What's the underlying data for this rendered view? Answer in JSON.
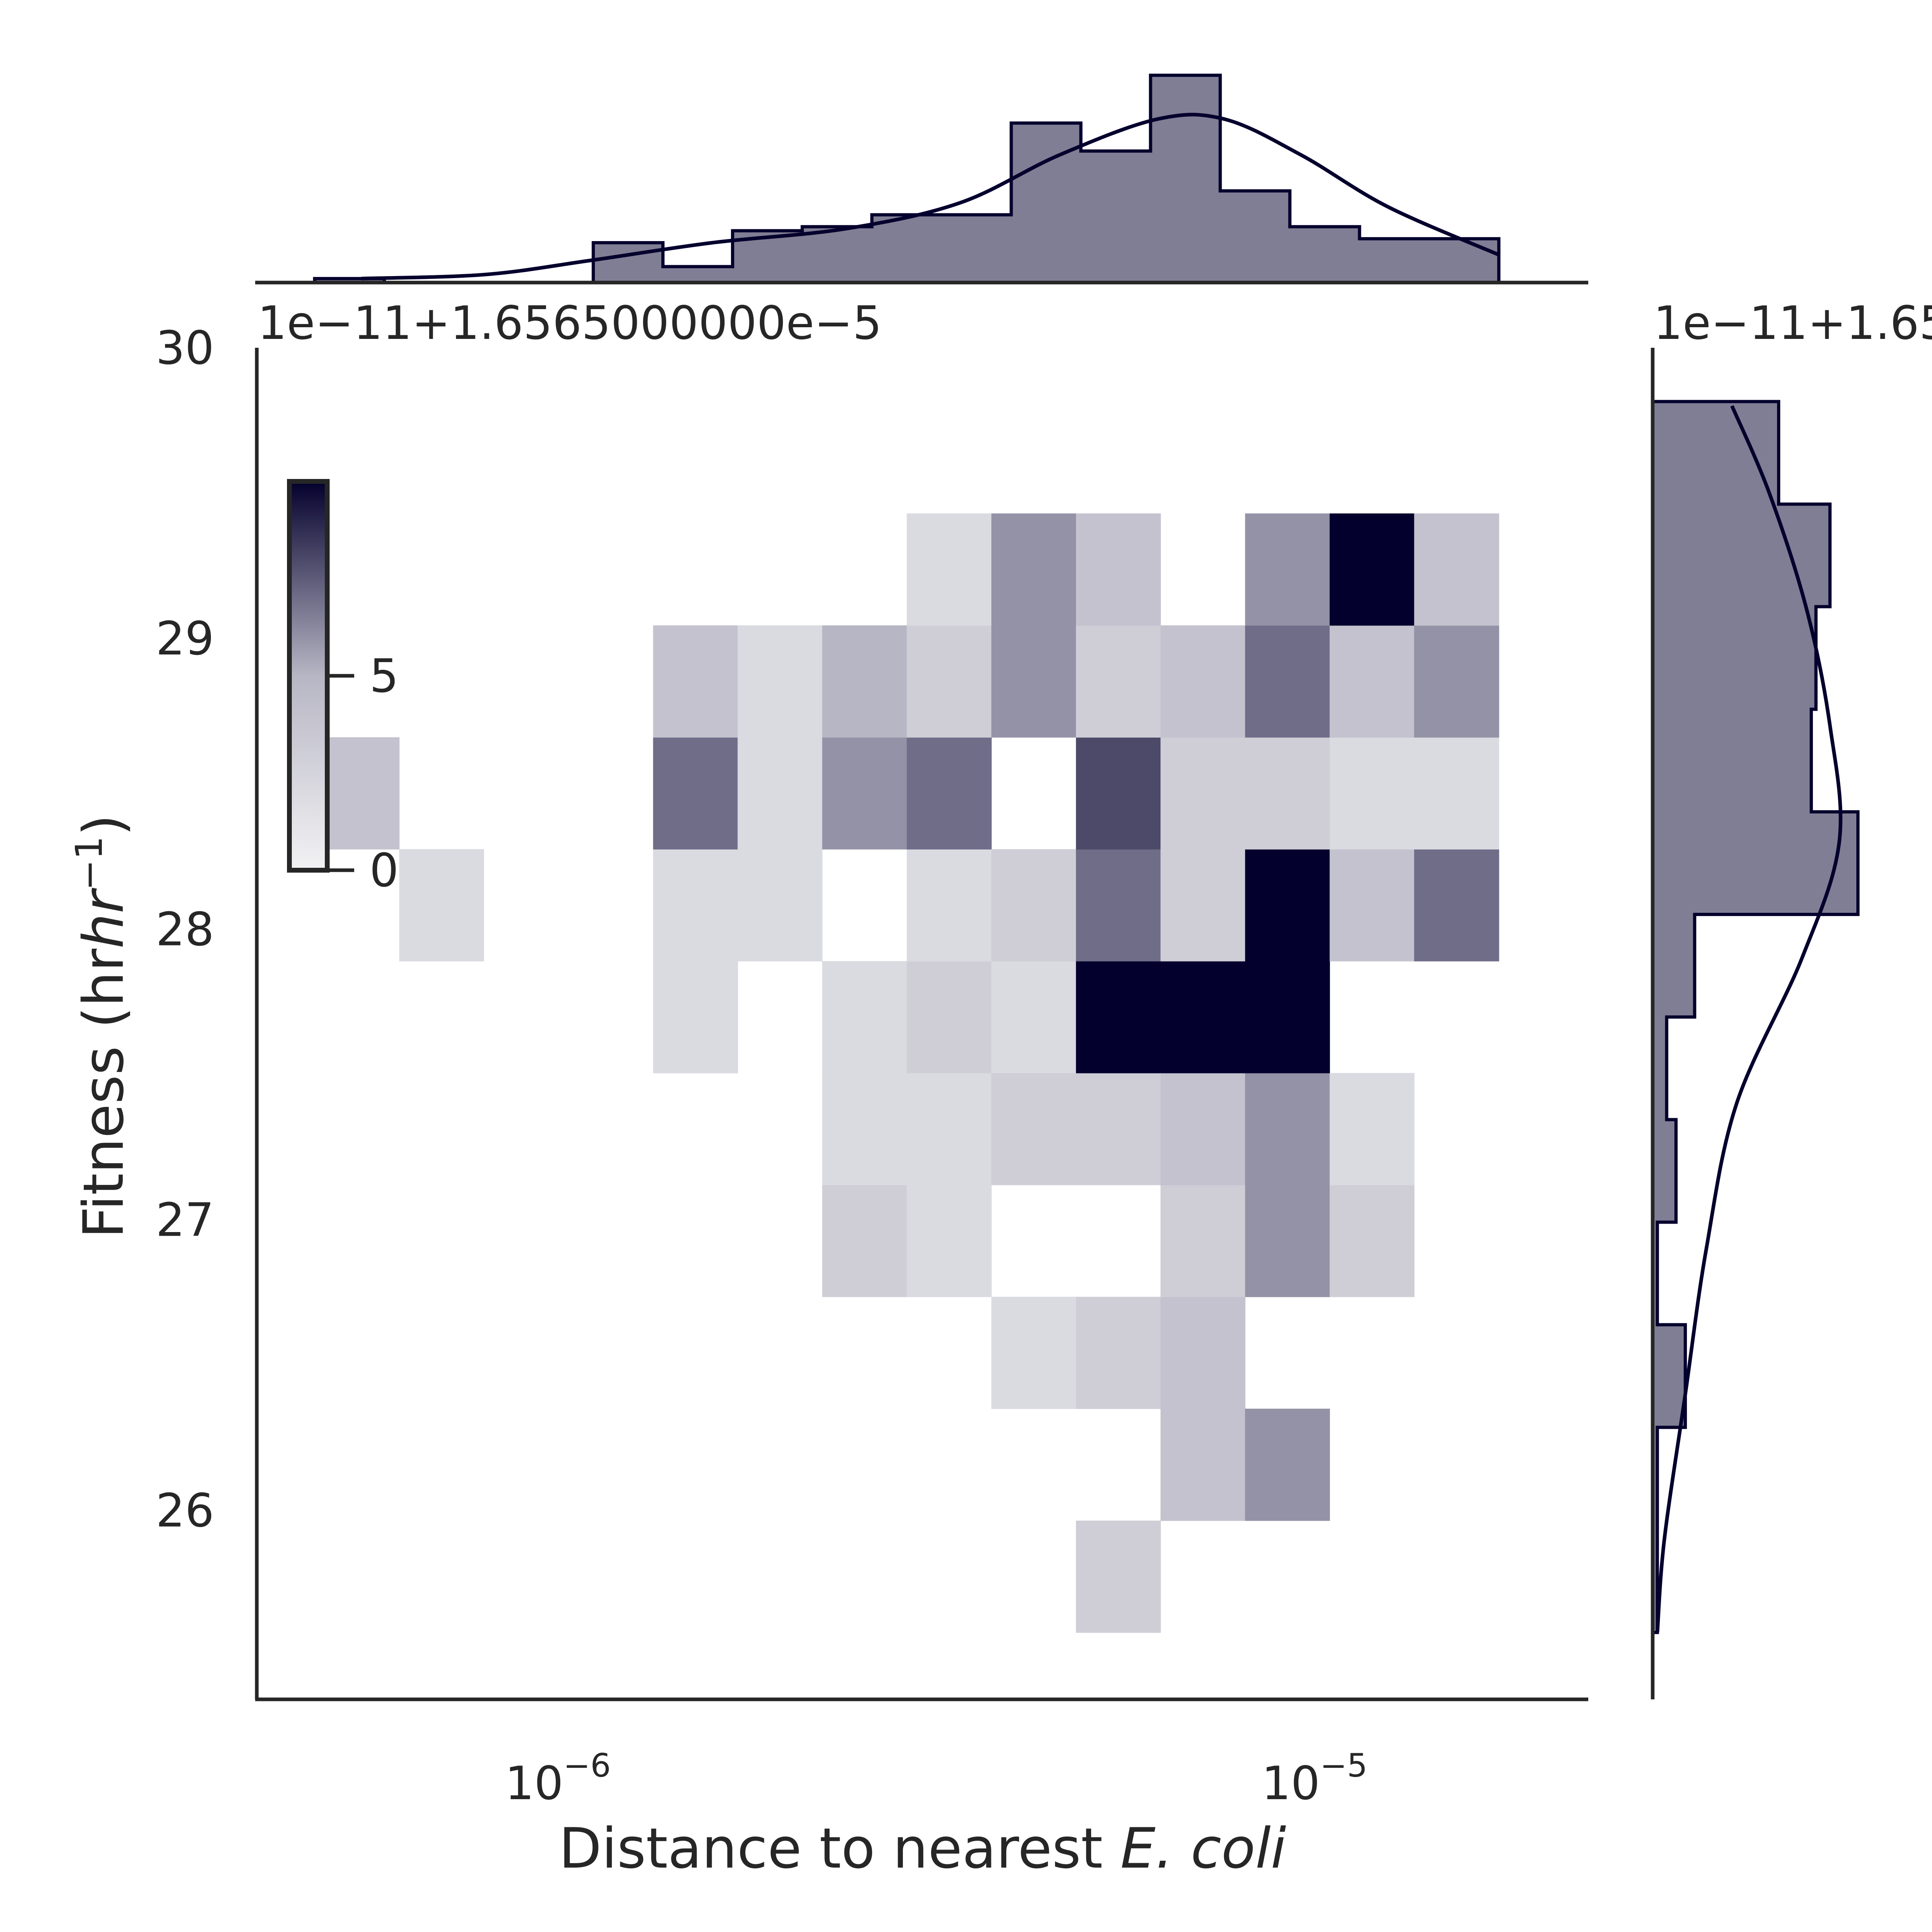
{
  "colors": {
    "dark": "#04002d",
    "axis": "#262626",
    "histFill": "#807e94"
  },
  "chart_data": {
    "type": "heatmap",
    "title": "",
    "xlabel_prefix": "Distance to nearest",
    "xlabel_italic": "E. coli",
    "ylabel": "Fitness",
    "ylabel_unit": "(hr",
    "ylabel_unit_sup": "−1",
    "ylabel_unit_close": ")",
    "x_scale": "log",
    "xlim": [
      4e-07,
      2.3e-05
    ],
    "ylim": [
      25.35,
      30.0
    ],
    "x_ticks": [
      {
        "value": 1e-06,
        "base": "10",
        "exp": "−6"
      },
      {
        "value": 1e-05,
        "base": "10",
        "exp": "−5"
      }
    ],
    "y_ticks": [
      "26",
      "27",
      "28",
      "29",
      "30"
    ],
    "top_offset_text": "1e−11+1.6565000000e−5",
    "right_offset_text": "1e−11+1.65",
    "x_bin_edges": [
      4.77e-07,
      6.17e-07,
      7.98e-07,
      1.033e-06,
      1.336e-06,
      1.728e-06,
      2.235e-06,
      2.891e-06,
      3.74e-06,
      4.838e-06,
      6.258e-06,
      8.095e-06,
      1.047e-05,
      1.354e-05,
      1.752e-05
    ],
    "y_bin_edges": [
      25.58,
      25.965,
      26.35,
      26.735,
      27.12,
      27.505,
      27.89,
      28.275,
      28.66,
      29.045,
      29.43,
      29.815
    ],
    "cells": [
      [
        0,
        7,
        4
      ],
      [
        1,
        6,
        2
      ],
      [
        4,
        5,
        2
      ],
      [
        4,
        6,
        2
      ],
      [
        4,
        7,
        7
      ],
      [
        4,
        8,
        4
      ],
      [
        5,
        6,
        2
      ],
      [
        5,
        7,
        2
      ],
      [
        5,
        8,
        2
      ],
      [
        6,
        3,
        3
      ],
      [
        6,
        4,
        2
      ],
      [
        6,
        5,
        2
      ],
      [
        6,
        7,
        6
      ],
      [
        6,
        8,
        5
      ],
      [
        7,
        3,
        2
      ],
      [
        7,
        4,
        2
      ],
      [
        7,
        5,
        3
      ],
      [
        7,
        6,
        2
      ],
      [
        7,
        7,
        7
      ],
      [
        7,
        8,
        3
      ],
      [
        7,
        9,
        2
      ],
      [
        8,
        2,
        2
      ],
      [
        8,
        4,
        3
      ],
      [
        8,
        5,
        2
      ],
      [
        8,
        6,
        3
      ],
      [
        8,
        8,
        6
      ],
      [
        8,
        9,
        6
      ],
      [
        9,
        0,
        3
      ],
      [
        9,
        2,
        3
      ],
      [
        9,
        4,
        3
      ],
      [
        9,
        5,
        10
      ],
      [
        9,
        6,
        7
      ],
      [
        9,
        7,
        8
      ],
      [
        9,
        8,
        3
      ],
      [
        9,
        9,
        4
      ],
      [
        10,
        1,
        4
      ],
      [
        10,
        2,
        4
      ],
      [
        10,
        3,
        3
      ],
      [
        10,
        4,
        4
      ],
      [
        10,
        5,
        10
      ],
      [
        10,
        6,
        3
      ],
      [
        10,
        7,
        3
      ],
      [
        10,
        8,
        4
      ],
      [
        11,
        1,
        6
      ],
      [
        11,
        3,
        6
      ],
      [
        11,
        4,
        6
      ],
      [
        11,
        5,
        10
      ],
      [
        11,
        6,
        10
      ],
      [
        11,
        7,
        3
      ],
      [
        11,
        8,
        7
      ],
      [
        11,
        9,
        6
      ],
      [
        12,
        3,
        3
      ],
      [
        12,
        4,
        2
      ],
      [
        12,
        6,
        4
      ],
      [
        12,
        7,
        2
      ],
      [
        12,
        8,
        4
      ],
      [
        12,
        9,
        10
      ],
      [
        13,
        6,
        7
      ],
      [
        13,
        7,
        2
      ],
      [
        13,
        8,
        6
      ],
      [
        13,
        9,
        4
      ],
      [
        14,
        1,
        4
      ],
      [
        14,
        5,
        3
      ],
      [
        14,
        6,
        2
      ],
      [
        14,
        7,
        2
      ],
      [
        14,
        8,
        2
      ],
      [
        14,
        9,
        2
      ]
    ],
    "colorbar": {
      "max_count": 10,
      "ticks": [
        {
          "value": 0,
          "label": "0"
        },
        {
          "value": 5,
          "label": "5"
        }
      ]
    },
    "x_marginal_hist": [
      1,
      0,
      0,
      0,
      10,
      4,
      13,
      14,
      17,
      17,
      40,
      33,
      52,
      23,
      14,
      11,
      11
    ],
    "x_marginal_kde": [
      [
        5.5e-07,
        1.0
      ],
      [
        8e-07,
        2.0
      ],
      [
        1.1e-06,
        5.5
      ],
      [
        1.6e-06,
        10.0
      ],
      [
        2.4e-06,
        13.5
      ],
      [
        3.4e-06,
        20.0
      ],
      [
        4.6e-06,
        32.0
      ],
      [
        6.2e-06,
        41.0
      ],
      [
        7.6e-06,
        41.0
      ],
      [
        9.6e-06,
        32.0
      ],
      [
        1.25e-05,
        19.0
      ],
      [
        1.75e-05,
        7.0
      ]
    ],
    "y_marginal_hist": [
      1,
      1,
      7,
      1,
      5,
      3,
      9,
      44,
      34,
      35,
      38,
      27
    ],
    "y_marginal_kde": [
      [
        25.58,
        1.0
      ],
      [
        25.9,
        2.5
      ],
      [
        26.4,
        7.0
      ],
      [
        26.9,
        11.5
      ],
      [
        27.4,
        18.0
      ],
      [
        27.9,
        32.0
      ],
      [
        28.3,
        40.0
      ],
      [
        28.7,
        38.0
      ],
      [
        29.1,
        33.0
      ],
      [
        29.5,
        25.0
      ],
      [
        29.8,
        17.0
      ]
    ]
  }
}
